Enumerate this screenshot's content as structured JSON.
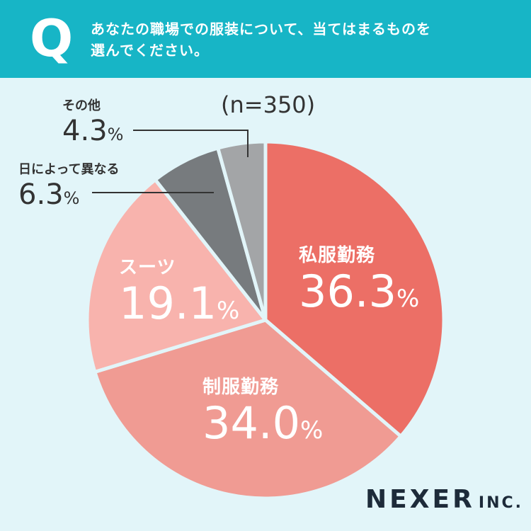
{
  "header": {
    "q_mark": "Q",
    "question_line1": "あなたの職場での服装について、当てはまるものを",
    "question_line2": "選んでください。"
  },
  "sample_size": "(n=350)",
  "percent_sign": "%",
  "colors": {
    "background": "#e2f5f9",
    "header": "#17b5c6",
    "private_clothes": "#ec6f66",
    "uniform": "#f09b93",
    "suit": "#f8b3ad",
    "varies_by_day": "#777b7e",
    "other": "#a3a5a7"
  },
  "chart_data": {
    "type": "pie",
    "title": "あなたの職場での服装について、当てはまるものを選んでください。",
    "n": 350,
    "unit": "%",
    "slices": [
      {
        "label": "私服勤務",
        "value": 36.3,
        "display": "36.3"
      },
      {
        "label": "制服勤務",
        "value": 34.0,
        "display": "34.0"
      },
      {
        "label": "スーツ",
        "value": 19.1,
        "display": "19.1"
      },
      {
        "label": "日によって異なる",
        "value": 6.3,
        "display": "6.3"
      },
      {
        "label": "その他",
        "value": 4.3,
        "display": "4.3"
      }
    ]
  },
  "logo": {
    "main": "NEXER",
    "sub": "INC."
  }
}
